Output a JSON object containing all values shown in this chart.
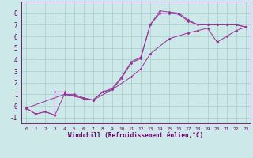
{
  "xlabel": "Windchill (Refroidissement éolien,°C)",
  "bg_color": "#cde8e8",
  "line_color": "#993399",
  "grid_color": "#aacccc",
  "axis_color": "#660066",
  "xlim": [
    -0.5,
    23.5
  ],
  "ylim": [
    -1.5,
    9.0
  ],
  "xticks": [
    0,
    1,
    2,
    3,
    4,
    5,
    6,
    7,
    8,
    9,
    10,
    11,
    12,
    13,
    14,
    15,
    16,
    17,
    18,
    19,
    20,
    21,
    22,
    23
  ],
  "yticks": [
    -1,
    0,
    1,
    2,
    3,
    4,
    5,
    6,
    7,
    8
  ],
  "line1_x": [
    0,
    1,
    2,
    3,
    3,
    4,
    4,
    5,
    6,
    7,
    8,
    9,
    10,
    11,
    12,
    13,
    14,
    15,
    16,
    17,
    18,
    19,
    20,
    21,
    22,
    23
  ],
  "line1_y": [
    -0.2,
    -0.7,
    -0.5,
    -0.8,
    1.2,
    1.2,
    1.0,
    1.0,
    0.7,
    0.5,
    1.2,
    1.5,
    2.5,
    3.8,
    4.2,
    7.0,
    8.2,
    8.1,
    8.0,
    7.4,
    7.0,
    7.0,
    7.0,
    7.0,
    7.0,
    6.8
  ],
  "line2_x": [
    0,
    1,
    2,
    3,
    4,
    5,
    6,
    7,
    8,
    9,
    10,
    11,
    12,
    13,
    14,
    15,
    16,
    17,
    18,
    19,
    20,
    21,
    22,
    23
  ],
  "line2_y": [
    -0.2,
    -0.7,
    -0.5,
    -0.8,
    1.0,
    0.9,
    0.6,
    0.5,
    1.2,
    1.4,
    2.4,
    3.7,
    4.1,
    7.0,
    8.0,
    8.0,
    7.9,
    7.3,
    7.0,
    7.0,
    7.0,
    7.0,
    7.0,
    6.8
  ],
  "line3_x": [
    0,
    4,
    7,
    9,
    11,
    12,
    13,
    15,
    17,
    18,
    19,
    20,
    21,
    22,
    23
  ],
  "line3_y": [
    -0.2,
    1.0,
    0.5,
    1.4,
    2.5,
    3.2,
    4.5,
    5.8,
    6.3,
    6.5,
    6.7,
    5.5,
    6.0,
    6.5,
    6.8
  ]
}
